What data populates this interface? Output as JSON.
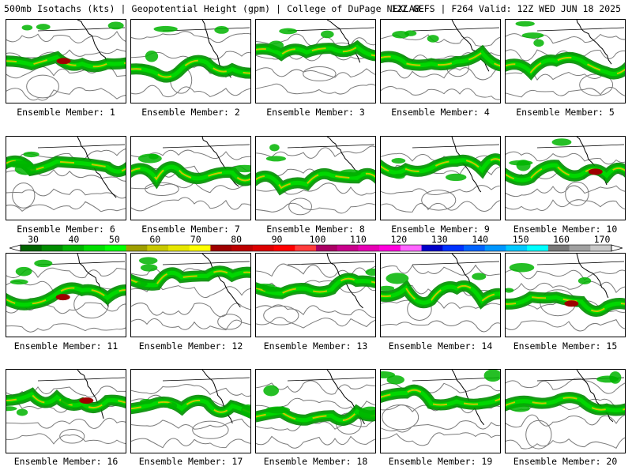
{
  "header": {
    "left": "500mb Isotachs (kts) | Geopotential Height (gpm) | College of DuPage NEXLAB",
    "right": "12Z GEFS | F264 Valid: 12Z WED JUN 18 2025"
  },
  "colorbar": {
    "ticks": [
      "30",
      "40",
      "50",
      "60",
      "70",
      "80",
      "90",
      "100",
      "110",
      "120",
      "130",
      "140",
      "150",
      "160",
      "170"
    ],
    "colors": [
      "#006400",
      "#008c00",
      "#00b400",
      "#00dc00",
      "#00ff00",
      "#9e9e00",
      "#c8c800",
      "#e6e600",
      "#ffff00",
      "#9e0000",
      "#bc0000",
      "#dc0000",
      "#ff0000",
      "#ff3c3c",
      "#aa0064",
      "#c8008c",
      "#e600b4",
      "#ff00dc",
      "#ff64ff",
      "#0000c8",
      "#0032ff",
      "#0064ff",
      "#0096ff",
      "#00c8ff",
      "#00ffff",
      "#787878",
      "#a0a0a0",
      "#c8c8c8"
    ]
  },
  "panels": [
    {
      "label": "Ensemble Member: 1"
    },
    {
      "label": "Ensemble Member: 2"
    },
    {
      "label": "Ensemble Member: 3"
    },
    {
      "label": "Ensemble Member: 4"
    },
    {
      "label": "Ensemble Member: 5"
    },
    {
      "label": "Ensemble Member: 6"
    },
    {
      "label": "Ensemble Member: 7"
    },
    {
      "label": "Ensemble Member: 8"
    },
    {
      "label": "Ensemble Member: 9"
    },
    {
      "label": "Ensemble Member: 10"
    },
    {
      "label": "Ensemble Member: 11"
    },
    {
      "label": "Ensemble Member: 12"
    },
    {
      "label": "Ensemble Member: 13"
    },
    {
      "label": "Ensemble Member: 14"
    },
    {
      "label": "Ensemble Member: 15"
    },
    {
      "label": "Ensemble Member: 16"
    },
    {
      "label": "Ensemble Member: 17"
    },
    {
      "label": "Ensemble Member: 18"
    },
    {
      "label": "Ensemble Member: 19"
    },
    {
      "label": "Ensemble Member: 20"
    }
  ]
}
